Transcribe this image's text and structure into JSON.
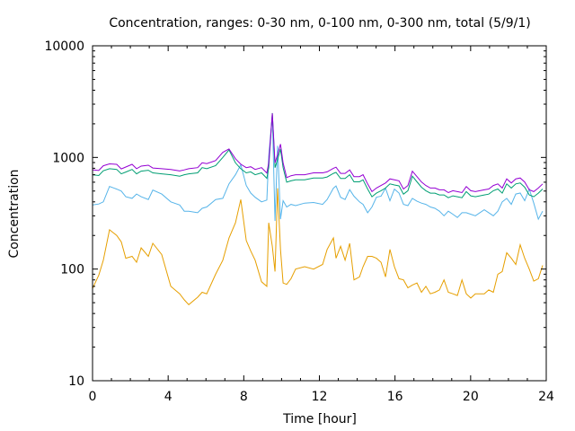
{
  "chart_data": {
    "type": "line",
    "title": "Concentration, ranges: 0-30 nm, 0-100 nm, 0-300 nm, total (5/9/1)",
    "xlabel": "Time [hour]",
    "ylabel": "Concentration",
    "xlim": [
      0,
      24
    ],
    "ylim": [
      10,
      10000
    ],
    "yscale": "log",
    "grid": false,
    "legend": "none",
    "xticks": [
      "0",
      "4",
      "8",
      "12",
      "16",
      "20",
      "24"
    ],
    "xtick_values": [
      0,
      4,
      8,
      12,
      16,
      20,
      24
    ],
    "yticks": [
      "10",
      "100",
      "1000",
      "10000"
    ],
    "ytick_values": [
      10,
      100,
      1000,
      10000
    ],
    "series": [
      {
        "name": "total",
        "color": "#9400d3",
        "x": [
          0,
          0.33,
          0.57,
          0.9,
          1.28,
          1.52,
          1.76,
          2.09,
          2.33,
          2.57,
          2.95,
          3.19,
          3.66,
          4.14,
          4.61,
          4.85,
          5.09,
          5.56,
          5.8,
          6.04,
          6.51,
          6.89,
          7.22,
          7.56,
          7.84,
          8.13,
          8.37,
          8.6,
          8.94,
          9.22,
          9.32,
          9.51,
          9.65,
          9.79,
          9.94,
          10.08,
          10.27,
          10.5,
          10.74,
          11.22,
          11.69,
          12.17,
          12.41,
          12.74,
          12.88,
          13.12,
          13.36,
          13.6,
          13.83,
          14.12,
          14.31,
          14.55,
          14.78,
          15.02,
          15.26,
          15.5,
          15.73,
          15.97,
          16.21,
          16.45,
          16.68,
          16.92,
          17.16,
          17.4,
          17.63,
          17.87,
          18.11,
          18.35,
          18.59,
          18.82,
          19.06,
          19.3,
          19.54,
          19.77,
          20.01,
          20.25,
          20.72,
          20.96,
          21.2,
          21.44,
          21.67,
          21.91,
          22.15,
          22.39,
          22.62,
          22.86,
          23.1,
          23.34,
          23.58,
          23.81
        ],
        "y": [
          775,
          763,
          843,
          875,
          867,
          790,
          821,
          867,
          792,
          836,
          852,
          804,
          792,
          780,
          757,
          774,
          792,
          810,
          895,
          880,
          938,
          1110,
          1191,
          974,
          870,
          810,
          825,
          780,
          810,
          725,
          894,
          2480,
          894,
          1063,
          1315,
          894,
          660,
          686,
          700,
          700,
          727,
          727,
          742,
          800,
          817,
          719,
          719,
          774,
          673,
          673,
          700,
          579,
          494,
          532,
          560,
          590,
          643,
          630,
          617,
          521,
          560,
          752,
          673,
          602,
          560,
          532,
          532,
          513,
          513,
          484,
          503,
          494,
          484,
          548,
          503,
          494,
          513,
          521,
          560,
          579,
          532,
          643,
          590,
          643,
          655,
          602,
          513,
          494,
          532,
          579
        ]
      },
      {
        "name": "0-300 nm",
        "color": "#009e73",
        "x": [
          0,
          0.33,
          0.57,
          0.9,
          1.28,
          1.52,
          1.76,
          2.09,
          2.33,
          2.57,
          2.95,
          3.19,
          3.66,
          4.14,
          4.61,
          4.85,
          5.09,
          5.56,
          5.8,
          6.04,
          6.51,
          6.89,
          7.22,
          7.56,
          7.84,
          8.13,
          8.37,
          8.6,
          8.94,
          9.22,
          9.32,
          9.51,
          9.65,
          9.79,
          9.94,
          10.08,
          10.27,
          10.5,
          10.74,
          11.22,
          11.69,
          12.17,
          12.41,
          12.74,
          12.88,
          13.12,
          13.36,
          13.6,
          13.83,
          14.12,
          14.31,
          14.55,
          14.78,
          15.02,
          15.26,
          15.5,
          15.73,
          15.97,
          16.21,
          16.45,
          16.68,
          16.92,
          17.16,
          17.4,
          17.63,
          17.87,
          18.11,
          18.35,
          18.59,
          18.82,
          19.06,
          19.3,
          19.54,
          19.77,
          20.01,
          20.25,
          20.72,
          20.96,
          21.2,
          21.44,
          21.67,
          21.91,
          22.15,
          22.39,
          22.62,
          22.86,
          23.1,
          23.34,
          23.58,
          23.81
        ],
        "y": [
          700,
          688,
          760,
          792,
          780,
          713,
          740,
          780,
          713,
          754,
          768,
          727,
          713,
          700,
          680,
          700,
          713,
          727,
          810,
          792,
          844,
          1000,
          1170,
          894,
          792,
          727,
          742,
          700,
          727,
          650,
          810,
          2500,
          810,
          960,
          1190,
          810,
          600,
          617,
          630,
          630,
          655,
          655,
          668,
          720,
          735,
          648,
          648,
          700,
          605,
          605,
          630,
          521,
          445,
          479,
          503,
          532,
          579,
          567,
          556,
          469,
          503,
          680,
          605,
          541,
          503,
          479,
          479,
          461,
          461,
          436,
          453,
          445,
          436,
          494,
          453,
          445,
          461,
          469,
          503,
          521,
          479,
          579,
          532,
          579,
          590,
          541,
          461,
          445,
          479,
          521
        ]
      },
      {
        "name": "0-100 nm",
        "color": "#56b4e9",
        "x": [
          0,
          0.33,
          0.57,
          0.9,
          1.28,
          1.52,
          1.76,
          2.09,
          2.33,
          2.57,
          2.95,
          3.19,
          3.66,
          4.14,
          4.61,
          4.85,
          5.09,
          5.56,
          5.8,
          6.04,
          6.51,
          6.89,
          7.22,
          7.56,
          7.84,
          8.13,
          8.37,
          8.6,
          8.94,
          9.22,
          9.32,
          9.51,
          9.65,
          9.79,
          9.94,
          10.08,
          10.27,
          10.5,
          10.74,
          11.22,
          11.69,
          12.17,
          12.41,
          12.74,
          12.88,
          13.12,
          13.36,
          13.6,
          13.83,
          14.12,
          14.31,
          14.55,
          14.78,
          15.02,
          15.26,
          15.5,
          15.73,
          15.97,
          16.21,
          16.45,
          16.68,
          16.92,
          17.16,
          17.4,
          17.63,
          17.87,
          18.11,
          18.35,
          18.59,
          18.82,
          19.06,
          19.3,
          19.54,
          19.77,
          20.01,
          20.25,
          20.72,
          20.96,
          21.2,
          21.44,
          21.67,
          21.91,
          22.15,
          22.39,
          22.62,
          22.86,
          23.1,
          23.34,
          23.58,
          23.81
        ],
        "y": [
          375,
          383,
          400,
          550,
          520,
          500,
          445,
          430,
          470,
          445,
          420,
          510,
          470,
          400,
          375,
          330,
          330,
          320,
          350,
          360,
          420,
          430,
          580,
          700,
          860,
          560,
          480,
          440,
          400,
          415,
          1020,
          2400,
          270,
          1270,
          280,
          410,
          360,
          380,
          370,
          390,
          395,
          380,
          420,
          530,
          555,
          440,
          420,
          515,
          450,
          400,
          380,
          320,
          360,
          440,
          450,
          530,
          410,
          520,
          480,
          380,
          370,
          430,
          405,
          390,
          380,
          360,
          350,
          330,
          300,
          330,
          310,
          290,
          320,
          320,
          310,
          300,
          340,
          320,
          300,
          330,
          400,
          430,
          380,
          470,
          480,
          410,
          520,
          390,
          280,
          330
        ]
      },
      {
        "name": "0-30 nm",
        "color": "#e69f00",
        "x": [
          0,
          0.33,
          0.57,
          0.9,
          1.28,
          1.52,
          1.76,
          2.09,
          2.33,
          2.57,
          2.95,
          3.19,
          3.66,
          4.14,
          4.61,
          4.85,
          5.09,
          5.56,
          5.8,
          6.04,
          6.51,
          6.89,
          7.22,
          7.56,
          7.84,
          8.13,
          8.37,
          8.6,
          8.94,
          9.22,
          9.32,
          9.51,
          9.65,
          9.79,
          9.94,
          10.08,
          10.27,
          10.5,
          10.74,
          11.22,
          11.69,
          12.17,
          12.41,
          12.74,
          12.88,
          13.12,
          13.36,
          13.6,
          13.83,
          14.12,
          14.31,
          14.55,
          14.78,
          15.02,
          15.26,
          15.5,
          15.73,
          15.97,
          16.21,
          16.45,
          16.68,
          16.92,
          17.16,
          17.4,
          17.63,
          17.87,
          18.11,
          18.35,
          18.59,
          18.82,
          19.06,
          19.3,
          19.54,
          19.77,
          20.01,
          20.25,
          20.72,
          20.96,
          21.2,
          21.44,
          21.67,
          21.91,
          22.15,
          22.39,
          22.62,
          22.86,
          23.1,
          23.34,
          23.58,
          23.81
        ],
        "y": [
          67,
          88,
          120,
          225,
          200,
          175,
          125,
          130,
          115,
          155,
          130,
          170,
          135,
          70,
          60,
          53,
          48,
          56,
          62,
          60,
          90,
          120,
          190,
          260,
          420,
          180,
          145,
          120,
          77,
          70,
          260,
          160,
          95,
          530,
          150,
          75,
          73,
          82,
          100,
          105,
          100,
          110,
          150,
          190,
          125,
          160,
          120,
          170,
          80,
          85,
          105,
          130,
          130,
          125,
          115,
          85,
          150,
          105,
          82,
          80,
          68,
          72,
          75,
          62,
          70,
          60,
          62,
          65,
          80,
          62,
          60,
          58,
          80,
          60,
          55,
          60,
          60,
          65,
          62,
          90,
          95,
          140,
          125,
          110,
          165,
          125,
          100,
          78,
          82,
          108
        ]
      }
    ]
  }
}
